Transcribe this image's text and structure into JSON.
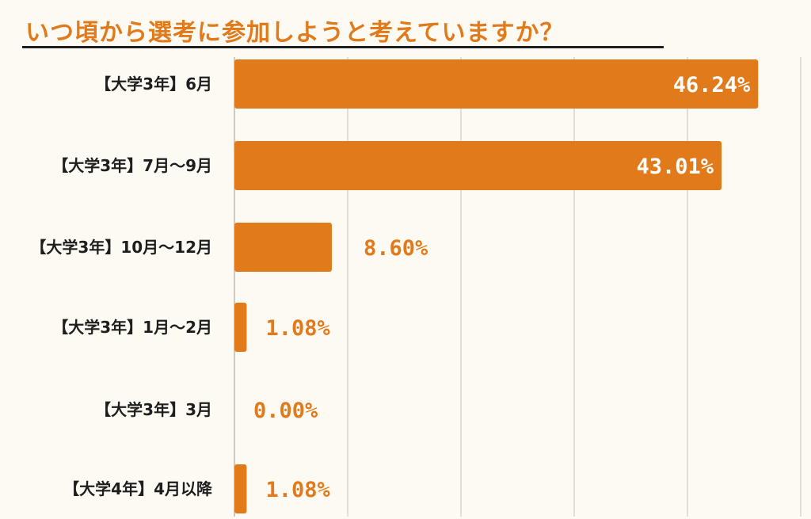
{
  "title": "いつ頃から選考に参加しようと考えていますか？",
  "colors": {
    "accent": "#e07a1b",
    "background": "#fdfaf3",
    "grid": "#d9d4cc",
    "label_text": "#1e1e1e"
  },
  "chart_data": {
    "type": "bar",
    "orientation": "horizontal",
    "title": "いつ頃から選考に参加しようと考えていますか？",
    "categories": [
      "【大学3年】6月",
      "【大学3年】7月〜9月",
      "【大学3年】10月〜12月",
      "【大学3年】1月〜2月",
      "【大学3年】3月",
      "【大学4年】4月以降"
    ],
    "values": [
      46.24,
      43.01,
      8.6,
      1.08,
      0.0,
      1.08
    ],
    "value_labels": [
      "46.24%",
      "43.01%",
      "8.60%",
      "1.08%",
      "0.00%",
      "1.08%"
    ],
    "xlim": [
      0,
      50
    ],
    "grid": true,
    "legend": "none"
  }
}
